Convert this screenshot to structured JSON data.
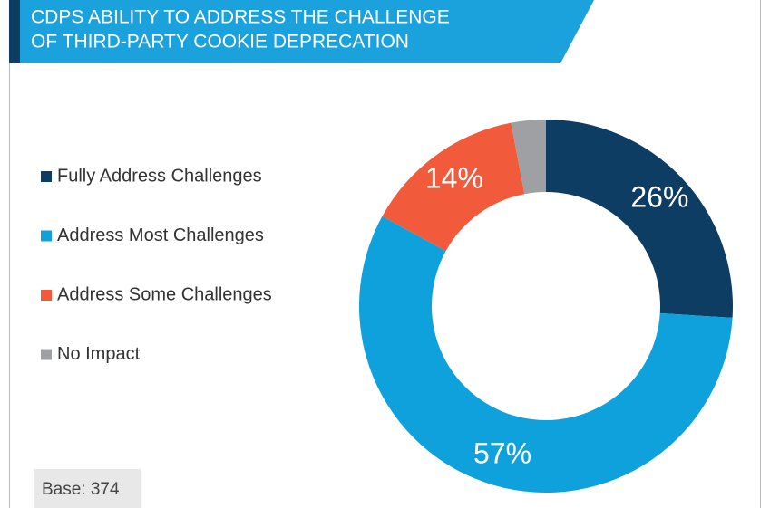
{
  "chart_data": {
    "type": "donut",
    "title": [
      "CDPS ABILITY TO ADDRESS THE CHALLENGE",
      "OF THIRD-PARTY COOKIE DEPRECATION"
    ],
    "categories": [
      "Fully Address Challenges",
      "Address Most Challenges",
      "Address Some Challenges",
      "No Impact"
    ],
    "values": [
      26,
      57,
      14,
      3
    ],
    "value_labels": [
      "26%",
      "57%",
      "14%",
      null
    ],
    "colors": [
      "#0d3d63",
      "#0fa1dc",
      "#f15b3c",
      "#9ea0a3"
    ],
    "footnote": "Base: 374"
  }
}
